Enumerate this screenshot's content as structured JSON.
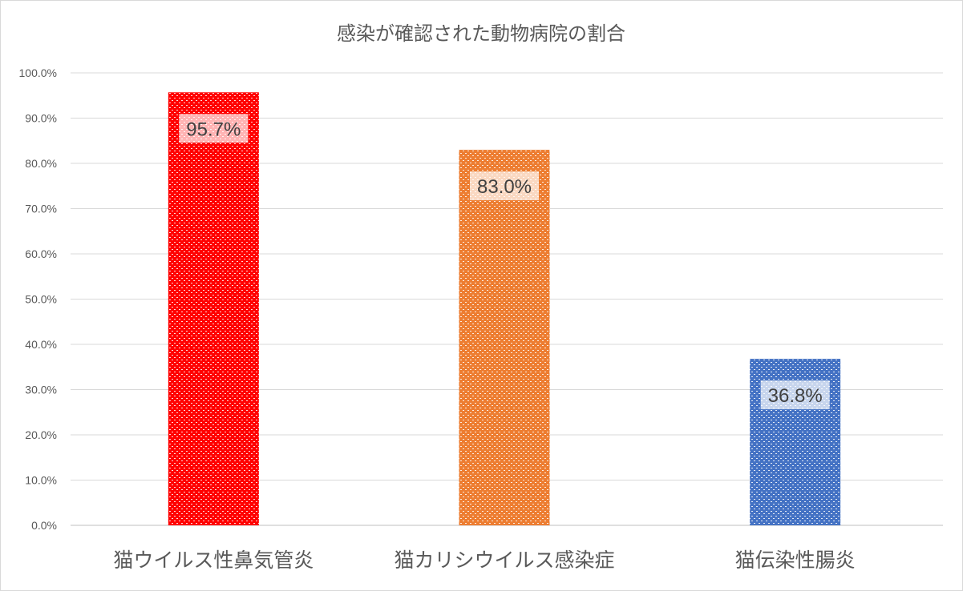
{
  "chart_data": {
    "type": "bar",
    "title": "感染が確認された動物病院の割合",
    "xlabel": "",
    "ylabel": "",
    "categories": [
      "猫ウイルス性鼻気管炎",
      "猫カリシウイルス感染症",
      "猫伝染性腸炎"
    ],
    "values": [
      95.7,
      83.0,
      36.8
    ],
    "data_labels": [
      "95.7%",
      "83.0%",
      "36.8%"
    ],
    "colors": [
      "#ff0000",
      "#ed7d31",
      "#4472c4"
    ],
    "pattern": "dotted-fill",
    "ylim": [
      0,
      100
    ],
    "yticks": [
      0,
      10,
      20,
      30,
      40,
      50,
      60,
      70,
      80,
      90,
      100
    ],
    "ytick_labels": [
      "0.0%",
      "10.0%",
      "20.0%",
      "30.0%",
      "40.0%",
      "50.0%",
      "60.0%",
      "70.0%",
      "80.0%",
      "90.0%",
      "100.0%"
    ],
    "grid": true,
    "legend": "none"
  }
}
